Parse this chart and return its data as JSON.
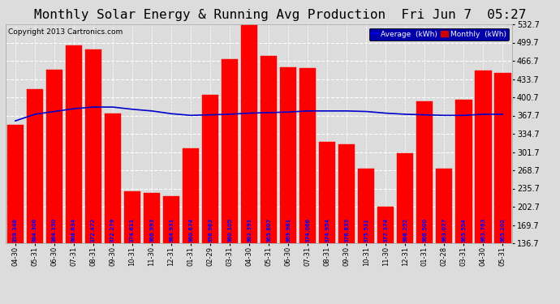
{
  "title": "Monthly Solar Energy & Running Avg Production  Fri Jun 7  05:27",
  "copyright": "Copyright 2013 Cartronics.com",
  "categories": [
    "04-30",
    "05-31",
    "06-30",
    "07-31",
    "08-31",
    "09-30",
    "10-31",
    "11-30",
    "12-31",
    "01-31",
    "02-29",
    "03-31",
    "04-30",
    "05-31",
    "06-30",
    "07-31",
    "08-31",
    "09-30",
    "10-31",
    "11-30",
    "12-31",
    "01-31",
    "02-28",
    "03-31",
    "04-30",
    "05-31"
  ],
  "monthly_values": [
    351,
    415,
    450,
    494,
    487,
    372,
    231,
    228,
    222,
    308,
    405,
    469,
    535,
    476,
    455,
    454,
    320,
    316,
    272,
    202,
    299,
    393,
    272,
    397,
    449,
    444
  ],
  "avg_values": [
    358,
    370,
    375,
    380,
    383,
    383,
    379,
    376,
    371,
    368,
    369,
    370,
    372,
    373,
    374,
    376,
    376,
    376,
    375,
    372,
    370,
    369,
    368,
    368,
    370,
    370
  ],
  "bar_labels": [
    "359.348",
    "364.306",
    "364.150",
    "368.634",
    "372.472",
    "372.279",
    "374.611",
    "366.993",
    "364.931",
    "360.674",
    "358.963",
    "360.105",
    "362.391",
    "365.807",
    "369.981",
    "374.066",
    "374.954",
    "376.835",
    "375.531",
    "377.374",
    "368.252",
    "366.500",
    "363.027",
    "365.554",
    "363.763",
    "365.202"
  ],
  "ylim_min": 136.7,
  "ylim_max": 532.7,
  "yticks": [
    136.7,
    169.7,
    202.7,
    235.7,
    268.7,
    301.7,
    334.7,
    367.7,
    400.7,
    433.7,
    466.7,
    499.7,
    532.7
  ],
  "bar_color": "#FF0000",
  "avg_color": "#0000CC",
  "legend_avg_label": "Average  (kWh)",
  "legend_monthly_label": "Monthly  (kWh)",
  "legend_avg_bg": "#0000AA",
  "legend_monthly_bg": "#CC0000",
  "background_color": "#DCDCDC",
  "grid_color": "#FFFFFF",
  "title_fontsize": 11.5,
  "copyright_fontsize": 6.5,
  "tick_label_fontsize": 6.5,
  "bar_label_fontsize": 4.8
}
